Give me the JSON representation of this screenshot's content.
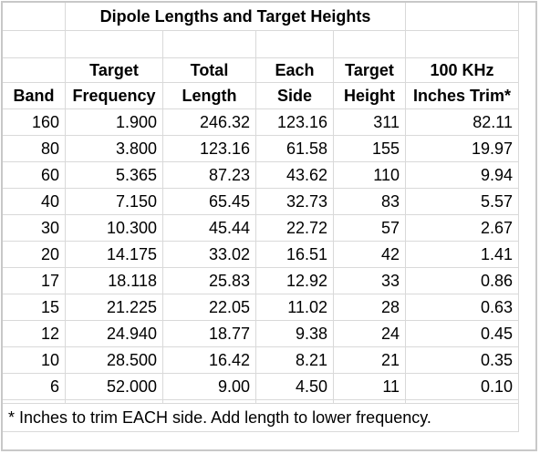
{
  "title": "Dipole Lengths and Target Heights",
  "headers": {
    "row1": [
      "",
      "Target",
      "Total",
      "Each",
      "Target",
      "100 KHz"
    ],
    "row2": [
      "Band",
      "Frequency",
      "Length",
      "Side",
      "Height",
      "Inches Trim*"
    ]
  },
  "rows": [
    [
      "160",
      "1.900",
      "246.32",
      "123.16",
      "311",
      "82.11"
    ],
    [
      "80",
      "3.800",
      "123.16",
      "61.58",
      "155",
      "19.97"
    ],
    [
      "60",
      "5.365",
      "87.23",
      "43.62",
      "110",
      "9.94"
    ],
    [
      "40",
      "7.150",
      "65.45",
      "32.73",
      "83",
      "5.57"
    ],
    [
      "30",
      "10.300",
      "45.44",
      "22.72",
      "57",
      "2.67"
    ],
    [
      "20",
      "14.175",
      "33.02",
      "16.51",
      "42",
      "1.41"
    ],
    [
      "17",
      "18.118",
      "25.83",
      "12.92",
      "33",
      "0.86"
    ],
    [
      "15",
      "21.225",
      "22.05",
      "11.02",
      "28",
      "0.63"
    ],
    [
      "12",
      "24.940",
      "18.77",
      "9.38",
      "24",
      "0.45"
    ],
    [
      "10",
      "28.500",
      "16.42",
      "8.21",
      "21",
      "0.35"
    ],
    [
      "6",
      "52.000",
      "9.00",
      "4.50",
      "11",
      "0.10"
    ]
  ],
  "footnote": "* Inches to trim EACH side.  Add length to lower frequency."
}
